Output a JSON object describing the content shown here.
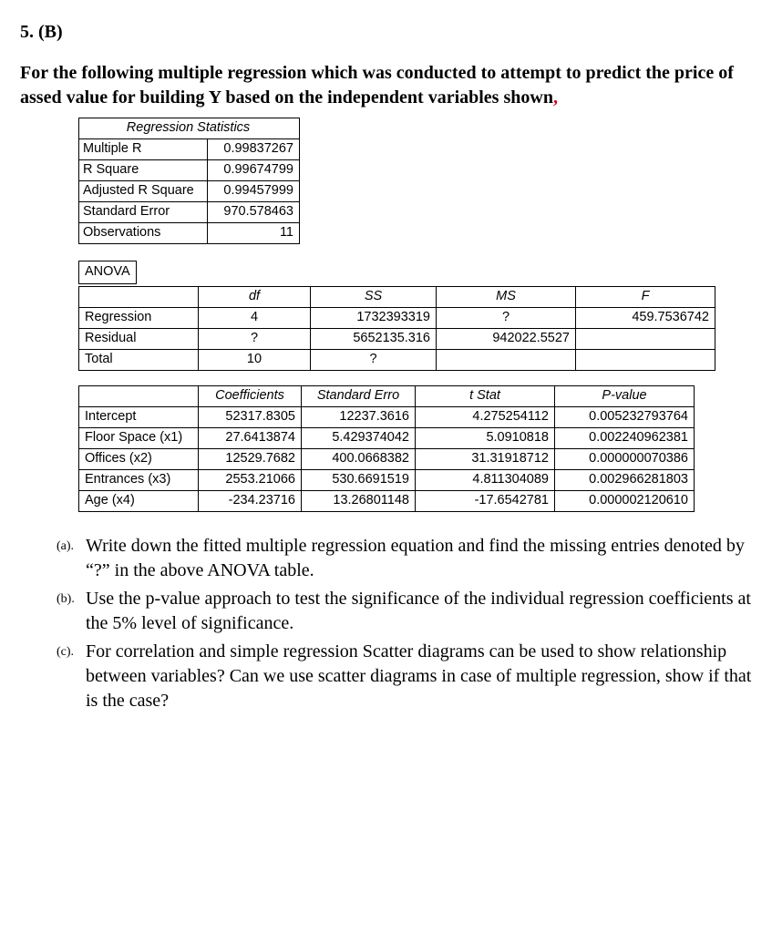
{
  "heading": "5. (B)",
  "prompt_main": "For the following multiple regression which was conducted to attempt to predict the price of assed value for building Y based on the independent variables shown",
  "prompt_comma": ",",
  "reg_stats": {
    "title": "Regression Statistics",
    "rows": [
      {
        "label": "Multiple R",
        "value": "0.99837267"
      },
      {
        "label": "R Square",
        "value": "0.99674799"
      },
      {
        "label": "Adjusted R Square",
        "value": "0.99457999"
      },
      {
        "label": "Standard Error",
        "value": "970.578463"
      },
      {
        "label": "Observations",
        "value": "11"
      }
    ]
  },
  "anova": {
    "title": "ANOVA",
    "headers": {
      "src": "",
      "df": "df",
      "ss": "SS",
      "ms": "MS",
      "f": "F"
    },
    "rows": [
      {
        "src": "Regression",
        "df": "4",
        "ss": "1732393319",
        "ms": "?",
        "f": "459.7536742"
      },
      {
        "src": "Residual",
        "df": "?",
        "ss": "5652135.316",
        "ms": "942022.5527",
        "f": ""
      },
      {
        "src": "Total",
        "df": "10",
        "ss": "?",
        "ms": "",
        "f": ""
      }
    ]
  },
  "coef": {
    "headers": {
      "name": "",
      "coef": "Coefficients",
      "se": "Standard Erro",
      "t": "t Stat",
      "p": "P-value"
    },
    "rows": [
      {
        "name": "Intercept",
        "coef": "52317.8305",
        "se": "12237.3616",
        "t": "4.275254112",
        "p": "0.005232793764"
      },
      {
        "name": "Floor Space (x1)",
        "coef": "27.6413874",
        "se": "5.429374042",
        "t": "5.0910818",
        "p": "0.002240962381"
      },
      {
        "name": "Offices (x2)",
        "coef": "12529.7682",
        "se": "400.0668382",
        "t": "31.31918712",
        "p": "0.000000070386"
      },
      {
        "name": "Entrances (x3)",
        "coef": "2553.21066",
        "se": "530.6691519",
        "t": "4.811304089",
        "p": "0.002966281803"
      },
      {
        "name": "Age (x4)",
        "coef": "-234.23716",
        "se": "13.26801148",
        "t": "-17.6542781",
        "p": "0.000002120610"
      }
    ]
  },
  "questions": {
    "a": {
      "tag": "(a).",
      "text": "Write down the fitted multiple regression equation and find the missing entries denoted by “?” in the above ANOVA table."
    },
    "b": {
      "tag": "(b).",
      "text": "Use the p-value approach to test the significance of the individual regression coefficients at the 5% level of significance."
    },
    "c": {
      "tag": "(c).",
      "text": "For correlation and simple regression Scatter diagrams can be used to show relationship between variables? Can we use scatter diagrams in case of multiple regression, show if that is the case?"
    }
  }
}
